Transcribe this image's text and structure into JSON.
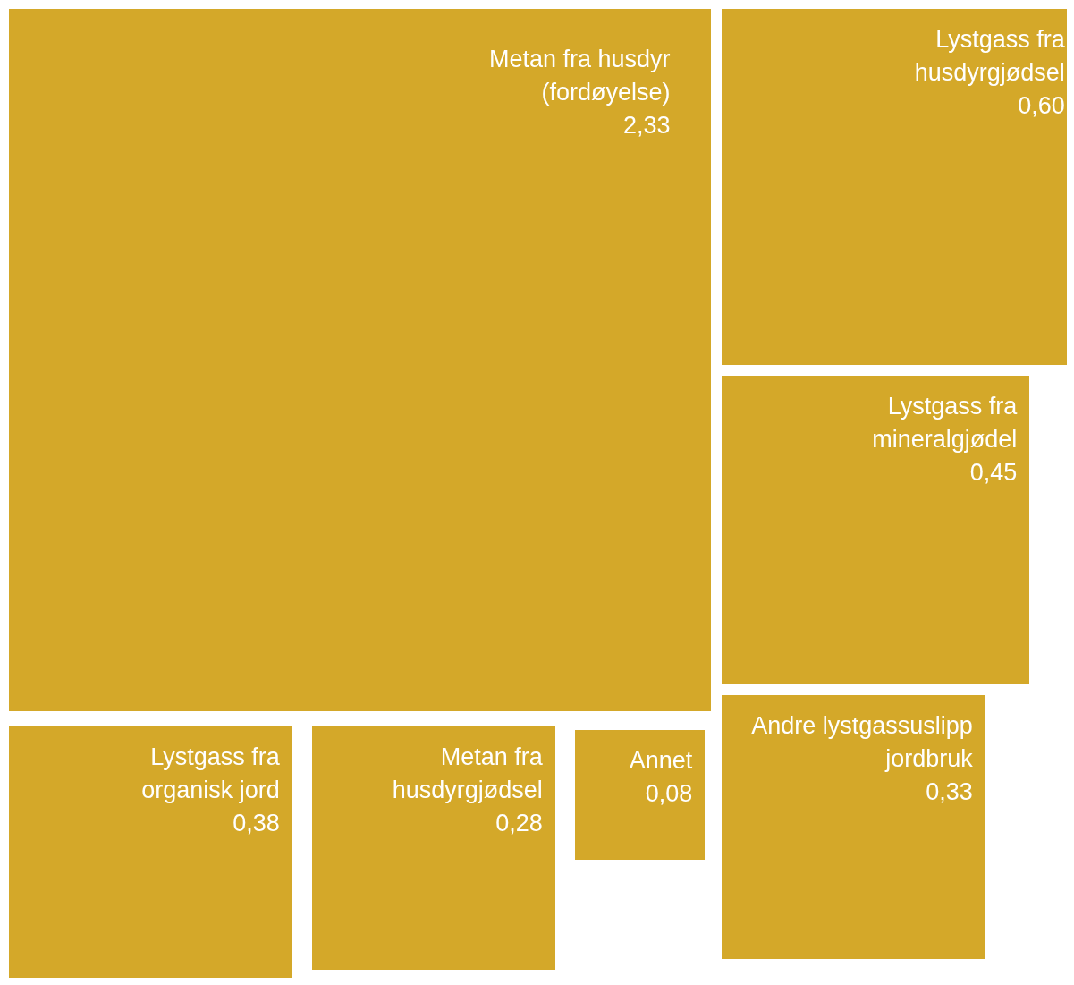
{
  "chart_data": {
    "type": "other",
    "categories": [
      "Metan fra husdyr (fordøyelse)",
      "Lystgass fra husdyrgjødsel",
      "Lystgass fra mineralgjødel",
      "Andre lystgassuslipp jordbruk",
      "Lystgass fra organisk jord",
      "Metan fra husdyrgjødsel",
      "Annet"
    ],
    "values": [
      2.33,
      0.6,
      0.45,
      0.33,
      0.38,
      0.28,
      0.08
    ],
    "value_labels": [
      "2,33",
      "0,60",
      "0,45",
      "0,33",
      "0,38",
      "0,28",
      "0,08"
    ],
    "color": "#d4a829"
  }
}
